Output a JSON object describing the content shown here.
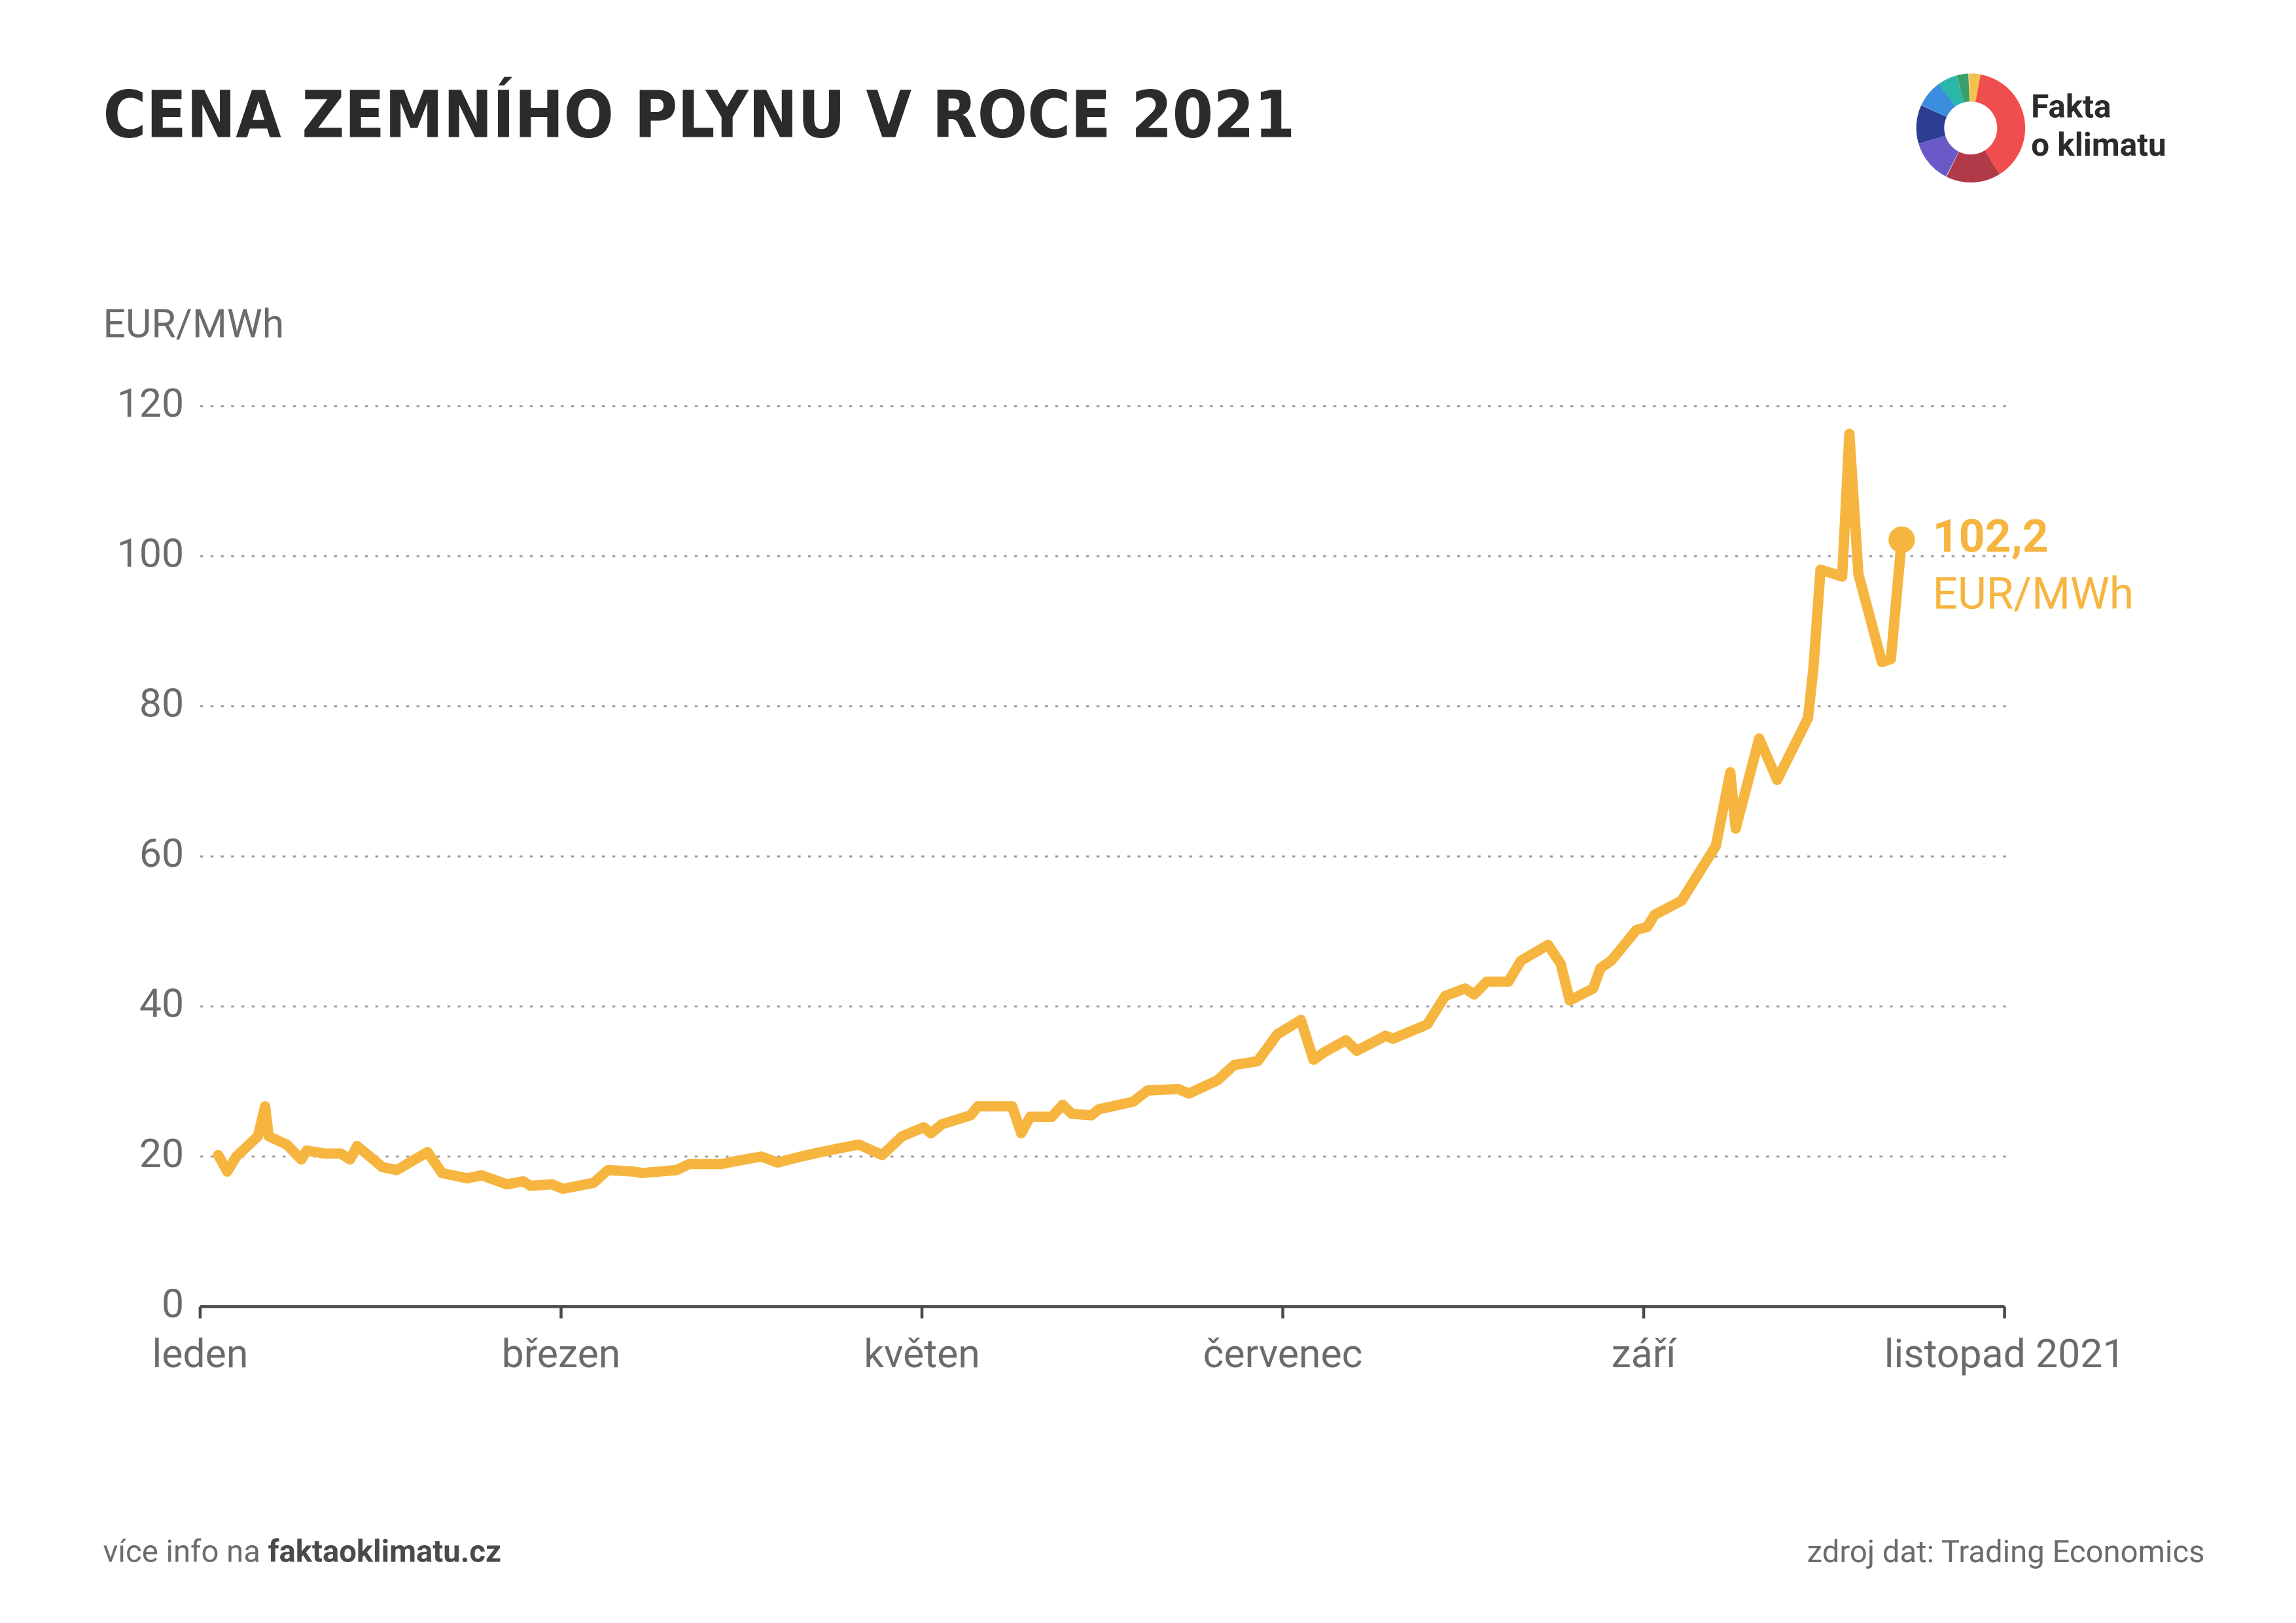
{
  "header": {
    "title": "CENA ZEMNÍHO PLYNU V ROCE 2021",
    "logo": [
      "Fakta",
      "o klimatu"
    ]
  },
  "chart_data": {
    "type": "line",
    "y_label": "EUR/MWh",
    "color": "#f6b53f",
    "end_label_unit": "EUR/MWh",
    "x": [
      0.1,
      0.15,
      0.2,
      0.32,
      0.36,
      0.38,
      0.48,
      0.56,
      0.59,
      0.69,
      0.78,
      0.83,
      0.87,
      1.01,
      1.09,
      1.26,
      1.34,
      1.48,
      1.56,
      1.7,
      1.79,
      1.83,
      1.95,
      2.01,
      2.18,
      2.26,
      2.4,
      2.45,
      2.64,
      2.71,
      2.89,
      2.97,
      3.11,
      3.2,
      3.33,
      3.44,
      3.65,
      3.78,
      3.89,
      4.01,
      4.05,
      4.11,
      4.27,
      4.31,
      4.5,
      4.55,
      4.6,
      4.72,
      4.78,
      4.83,
      4.94,
      4.98,
      5.17,
      5.25,
      5.42,
      5.48,
      5.64,
      5.73,
      5.86,
      5.97,
      6.1,
      6.17,
      6.23,
      6.35,
      6.41,
      6.57,
      6.61,
      6.8,
      6.9,
      7.01,
      7.06,
      7.13,
      7.25,
      7.32,
      7.47,
      7.54,
      7.59,
      7.72,
      7.76,
      7.82,
      7.96,
      8.02,
      8.06,
      8.21,
      8.4,
      8.48,
      8.51,
      8.64,
      8.74,
      8.91,
      8.94,
      8.98,
      9.1,
      9.14,
      9.19,
      9.32,
      9.37,
      9.43
    ],
    "values": [
      20.2,
      18.0,
      20,
      22.7,
      26.7,
      22.7,
      21.6,
      19.6,
      20.8,
      20.4,
      20.4,
      19.6,
      21.4,
      18.6,
      18.2,
      20.6,
      17.8,
      17.1,
      17.5,
      16.3,
      16.7,
      16.1,
      16.3,
      15.7,
      16.5,
      18.2,
      18.0,
      17.8,
      18.2,
      19.0,
      19.0,
      19.4,
      20.0,
      19.2,
      20.0,
      20.6,
      21.6,
      20.2,
      22.7,
      23.9,
      23.1,
      24.3,
      25.5,
      26.7,
      26.7,
      23.1,
      25.3,
      25.3,
      26.9,
      25.7,
      25.5,
      26.3,
      27.3,
      28.8,
      29.0,
      28.4,
      30.2,
      32.2,
      32.7,
      36.3,
      38.2,
      32.9,
      33.9,
      35.5,
      34.1,
      36.1,
      35.7,
      37.6,
      41.4,
      42.4,
      41.6,
      43.3,
      43.3,
      46.1,
      48.2,
      45.7,
      40.8,
      42.4,
      45.1,
      46.1,
      50.2,
      50.6,
      52.2,
      54.1,
      61.4,
      71.2,
      63.7,
      75.7,
      70.2,
      78.4,
      84.9,
      98.2,
      97.3,
      116.3,
      97.6,
      85.9,
      86.3,
      102.2
    ],
    "value_labels": [
      null,
      null,
      null,
      null,
      null,
      null,
      null,
      null,
      null,
      null,
      null,
      null,
      null,
      null,
      null,
      null,
      null,
      null,
      null,
      null,
      null,
      null,
      null,
      null,
      null,
      null,
      null,
      null,
      null,
      null,
      null,
      null,
      null,
      null,
      null,
      null,
      null,
      null,
      null,
      null,
      null,
      null,
      null,
      null,
      null,
      null,
      null,
      null,
      null,
      null,
      null,
      null,
      null,
      null,
      null,
      null,
      null,
      null,
      null,
      null,
      null,
      null,
      null,
      null,
      null,
      null,
      null,
      null,
      null,
      null,
      null,
      null,
      null,
      null,
      null,
      null,
      null,
      null,
      null,
      null,
      null,
      null,
      null,
      null,
      null,
      null,
      null,
      null,
      null,
      null,
      null,
      null,
      null,
      null,
      null,
      null,
      null,
      "102,2"
    ],
    "xlim": [
      0,
      10
    ],
    "xticks": [
      {
        "value": 0,
        "label": "leden"
      },
      {
        "value": 2,
        "label": "březen"
      },
      {
        "value": 4,
        "label": "květen"
      },
      {
        "value": 6,
        "label": "červenec"
      },
      {
        "value": 8,
        "label": "září"
      },
      {
        "value": 10,
        "label": "listopad 2021"
      }
    ],
    "ylim": [
      0,
      120
    ],
    "yticks": [
      0,
      20,
      40,
      60,
      80,
      100,
      120
    ],
    "grid": true
  },
  "footer": {
    "left_prefix": "více info na ",
    "left_link": "faktaoklimatu.cz",
    "right": "zdroj dat: Trading Economics"
  }
}
